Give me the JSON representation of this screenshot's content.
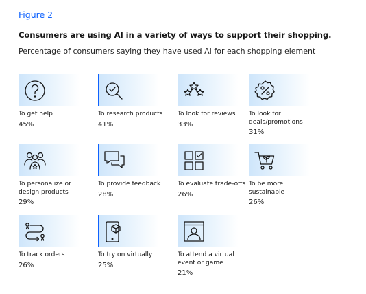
{
  "figure_label": "Figure 2",
  "title": "Consumers are using AI in a variety of ways to support their shopping.",
  "subtitle": "Percentage of consumers saying they have used AI for each shopping element",
  "tiles": [
    {
      "label": "To get help",
      "pct": "45%",
      "icon": "question-mark-icon"
    },
    {
      "label": "To research products",
      "pct": "41%",
      "icon": "magnifier-check-icon"
    },
    {
      "label": "To look for reviews",
      "pct": "33%",
      "icon": "stars-icon"
    },
    {
      "label": "To look for deals/promotions",
      "pct": "31%",
      "icon": "percent-badge-icon"
    },
    {
      "label": "To personalize or design products",
      "pct": "29%",
      "icon": "people-star-icon"
    },
    {
      "label": "To provide feedback",
      "pct": "28%",
      "icon": "chat-bubbles-icon"
    },
    {
      "label": "To evaluate trade-offs",
      "pct": "26%",
      "icon": "grid-checkbox-icon"
    },
    {
      "label": "To be more sustainable",
      "pct": "26%",
      "icon": "cart-leaf-icon"
    },
    {
      "label": "To track orders",
      "pct": "26%",
      "icon": "route-icon"
    },
    {
      "label": "To try on virtually",
      "pct": "25%",
      "icon": "phone-cube-icon"
    },
    {
      "label": "To attend a virtual event or game",
      "pct": "21%",
      "icon": "virtual-event-icon"
    }
  ],
  "colors": {
    "accent": "#0f62fe",
    "icon_bg": "#cfe6fb",
    "text": "#161616"
  }
}
